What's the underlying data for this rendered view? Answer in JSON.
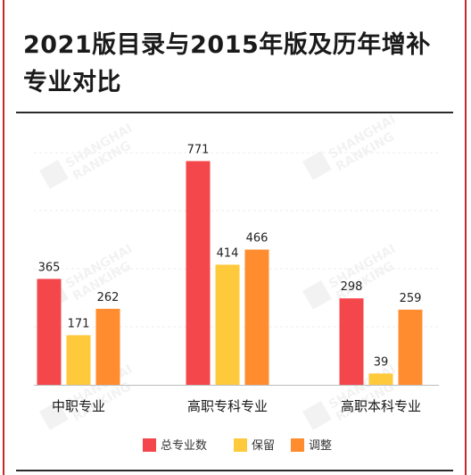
{
  "title": "2021版目录与2015年版及历年增补专业对比",
  "chart_data": {
    "type": "bar",
    "title": "2021版目录与2015年版及历年增补专业对比",
    "categories": [
      "中职专业",
      "高职专科专业",
      "高职本科专业"
    ],
    "series": [
      {
        "name": "总专业数",
        "color": "#f4474c",
        "values": [
          365,
          771,
          298
        ]
      },
      {
        "name": "保留",
        "color": "#ffc93c",
        "values": [
          171,
          414,
          39
        ]
      },
      {
        "name": "调整",
        "color": "#ff8c2e",
        "values": [
          262,
          466,
          259
        ]
      }
    ],
    "ylim": [
      0,
      800
    ],
    "grid": true,
    "legend": "bottom-center",
    "xlabel": "",
    "ylabel": ""
  },
  "watermark": {
    "text1": "SHANGHAI",
    "text2": "RANKING"
  }
}
